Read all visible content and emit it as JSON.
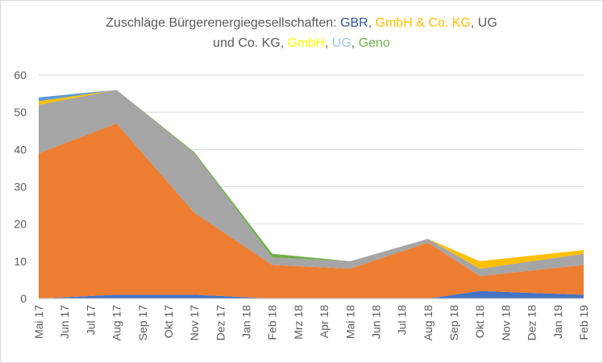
{
  "title": {
    "line1": [
      {
        "text": "Zuschläge Bürgerenergiegesellschaften: ",
        "color": "#595959"
      },
      {
        "text": "GBR",
        "color": "#2F5597"
      },
      {
        "text": ", ",
        "color": "#595959"
      },
      {
        "text": "GmbH & Co. KG",
        "color": "#FFC000"
      },
      {
        "text": ", UG",
        "color": "#595959"
      }
    ],
    "line2": [
      {
        "text": "und Co. KG, ",
        "color": "#595959"
      },
      {
        "text": "GmbH",
        "color": "#FFFF00"
      },
      {
        "text": ", ",
        "color": "#595959"
      },
      {
        "text": "UG",
        "color": "#9DC3E6"
      },
      {
        "text": ", ",
        "color": "#595959"
      },
      {
        "text": "Geno",
        "color": "#70AD47"
      }
    ]
  },
  "chart_data": {
    "type": "area",
    "stacked": true,
    "title": "Zuschläge Bürgerenergiegesellschaften: GBR, GmbH & Co. KG, UG und Co. KG, GmbH, UG, Geno",
    "categories": [
      "Mai 17",
      "Jun 17",
      "Jul 17",
      "Aug 17",
      "Sep 17",
      "Okt 17",
      "Nov 17",
      "Dez 17",
      "Jan 18",
      "Feb 18",
      "Mrz 18",
      "Apr 18",
      "Mai 18",
      "Jun 18",
      "Jul 18",
      "Aug 18",
      "Sep 18",
      "Okt 18",
      "Nov 18",
      "Dez 18",
      "Jan 19",
      "Feb 19"
    ],
    "ylim": [
      0,
      60
    ],
    "yticks": [
      "0",
      "10",
      "20",
      "30",
      "40",
      "50",
      "60"
    ],
    "grid": true,
    "legend": "none",
    "series": [
      {
        "name": "GBR",
        "color": "#4472C4",
        "values": [
          0,
          null,
          null,
          1,
          null,
          null,
          1,
          null,
          null,
          0,
          null,
          null,
          0,
          null,
          null,
          0,
          null,
          2,
          null,
          null,
          null,
          1
        ]
      },
      {
        "color": "#ED7D31",
        "values": [
          39,
          null,
          null,
          46,
          null,
          null,
          22,
          null,
          null,
          9,
          null,
          null,
          8,
          null,
          null,
          15,
          null,
          4,
          null,
          null,
          null,
          8
        ]
      },
      {
        "color": "#A5A5A5",
        "values": [
          13,
          null,
          null,
          9,
          null,
          null,
          16,
          null,
          null,
          2,
          null,
          null,
          2,
          null,
          null,
          1,
          null,
          2,
          null,
          null,
          null,
          3
        ]
      },
      {
        "name": "GmbH & Co. KG",
        "color": "#FFC000",
        "values": [
          1,
          null,
          null,
          0,
          null,
          null,
          0,
          null,
          null,
          0,
          null,
          null,
          0,
          null,
          null,
          0,
          null,
          2,
          null,
          null,
          null,
          1
        ]
      },
      {
        "name": "UG",
        "color": "#5B9BD5",
        "values": [
          1,
          null,
          null,
          0,
          null,
          null,
          0,
          null,
          null,
          0,
          null,
          null,
          0,
          null,
          null,
          0,
          null,
          0,
          null,
          null,
          null,
          0
        ]
      },
      {
        "name": "Geno",
        "color": "#70AD47",
        "values": [
          0,
          null,
          null,
          0,
          null,
          null,
          0.3,
          null,
          null,
          1,
          null,
          null,
          0,
          null,
          null,
          0,
          null,
          0,
          null,
          null,
          null,
          0
        ]
      }
    ]
  }
}
